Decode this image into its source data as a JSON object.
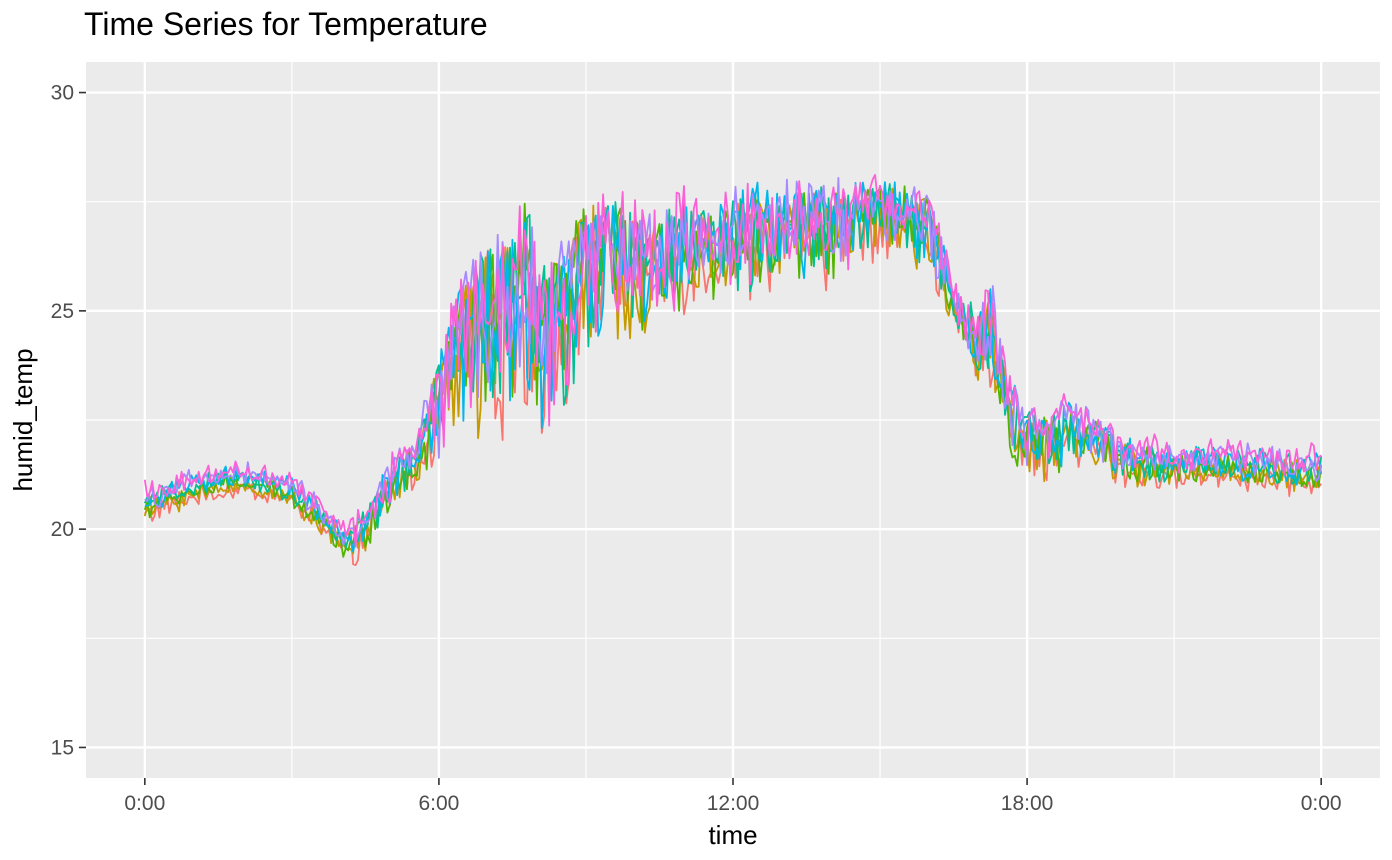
{
  "chart_data": {
    "type": "line",
    "title": "Time Series for Temperature",
    "xlabel": "time",
    "ylabel": "humid_temp",
    "xlim_hours": [
      -1.2,
      25.2
    ],
    "ylim": [
      14.3,
      30.7
    ],
    "x_ticks": [
      {
        "hour": 0,
        "label": "0:00"
      },
      {
        "hour": 6,
        "label": "6:00"
      },
      {
        "hour": 12,
        "label": "12:00"
      },
      {
        "hour": 18,
        "label": "18:00"
      },
      {
        "hour": 24,
        "label": "0:00"
      }
    ],
    "y_ticks": [
      {
        "value": 15,
        "label": "15"
      },
      {
        "value": 20,
        "label": "20"
      },
      {
        "value": 25,
        "label": "25"
      },
      {
        "value": 30,
        "label": "30"
      }
    ],
    "grid": true,
    "panel_background": "#EBEBEB",
    "legend": "none",
    "x_unit": "hour of day",
    "base_profile": [
      [
        0.0,
        20.3
      ],
      [
        0.5,
        20.6
      ],
      [
        1.0,
        20.8
      ],
      [
        1.5,
        20.9
      ],
      [
        2.0,
        21.0
      ],
      [
        2.5,
        20.9
      ],
      [
        3.0,
        20.7
      ],
      [
        3.5,
        20.2
      ],
      [
        4.0,
        19.5
      ],
      [
        4.3,
        19.4
      ],
      [
        4.7,
        20.0
      ],
      [
        5.0,
        20.5
      ],
      [
        5.5,
        20.8
      ],
      [
        6.0,
        21.0
      ],
      [
        6.5,
        21.3
      ],
      [
        7.0,
        21.5
      ],
      [
        7.5,
        21.3
      ],
      [
        8.0,
        21.0
      ],
      [
        8.5,
        21.8
      ],
      [
        9.0,
        23.0
      ],
      [
        9.5,
        23.6
      ],
      [
        10.0,
        24.0
      ],
      [
        10.5,
        24.2
      ],
      [
        11.0,
        24.5
      ],
      [
        11.5,
        24.8
      ],
      [
        12.0,
        24.9
      ],
      [
        12.5,
        25.0
      ],
      [
        13.0,
        25.0
      ],
      [
        13.5,
        25.1
      ],
      [
        14.0,
        25.3
      ],
      [
        14.5,
        25.6
      ],
      [
        15.0,
        26.0
      ],
      [
        15.5,
        26.0
      ],
      [
        16.0,
        25.6
      ],
      [
        16.5,
        24.2
      ],
      [
        17.0,
        23.2
      ],
      [
        17.4,
        22.6
      ],
      [
        17.7,
        21.3
      ],
      [
        18.0,
        21.0
      ],
      [
        18.5,
        21.0
      ],
      [
        19.0,
        21.3
      ],
      [
        19.5,
        21.3
      ],
      [
        20.0,
        21.2
      ],
      [
        21.0,
        21.2
      ],
      [
        22.0,
        21.2
      ],
      [
        23.0,
        21.1
      ],
      [
        24.0,
        21.0
      ]
    ],
    "upper_envelope": [
      [
        0.0,
        20.8
      ],
      [
        1.0,
        21.1
      ],
      [
        2.0,
        21.3
      ],
      [
        3.0,
        21.0
      ],
      [
        3.5,
        20.6
      ],
      [
        4.0,
        20.0
      ],
      [
        4.3,
        20.1
      ],
      [
        4.7,
        20.8
      ],
      [
        5.0,
        21.5
      ],
      [
        5.5,
        21.9
      ],
      [
        6.0,
        24.0
      ],
      [
        6.5,
        25.8
      ],
      [
        7.0,
        26.5
      ],
      [
        7.5,
        26.8
      ],
      [
        7.8,
        27.8
      ],
      [
        8.0,
        26.0
      ],
      [
        8.5,
        26.4
      ],
      [
        9.0,
        27.5
      ],
      [
        9.5,
        27.6
      ],
      [
        10.0,
        27.2
      ],
      [
        10.5,
        27.0
      ],
      [
        11.0,
        27.6
      ],
      [
        11.5,
        27.2
      ],
      [
        12.0,
        27.7
      ],
      [
        12.5,
        27.8
      ],
      [
        13.0,
        27.7
      ],
      [
        13.5,
        27.8
      ],
      [
        14.0,
        27.9
      ],
      [
        14.5,
        27.8
      ],
      [
        15.0,
        27.9
      ],
      [
        15.5,
        27.8
      ],
      [
        16.0,
        27.6
      ],
      [
        16.3,
        26.5
      ],
      [
        16.5,
        25.5
      ],
      [
        17.0,
        25.0
      ],
      [
        17.3,
        25.5
      ],
      [
        17.6,
        23.5
      ],
      [
        18.0,
        22.6
      ],
      [
        18.5,
        22.6
      ],
      [
        18.8,
        22.9
      ],
      [
        19.0,
        22.7
      ],
      [
        19.5,
        22.4
      ],
      [
        20.0,
        22.0
      ],
      [
        21.0,
        21.7
      ],
      [
        22.0,
        21.8
      ],
      [
        23.0,
        21.7
      ],
      [
        24.0,
        21.6
      ]
    ],
    "series": [
      {
        "color": "#F8766D"
      },
      {
        "color": "#C49A00"
      },
      {
        "color": "#53B400"
      },
      {
        "color": "#00C094"
      },
      {
        "color": "#00B6EB"
      },
      {
        "color": "#A58AFF"
      },
      {
        "color": "#FB61D7"
      }
    ]
  }
}
